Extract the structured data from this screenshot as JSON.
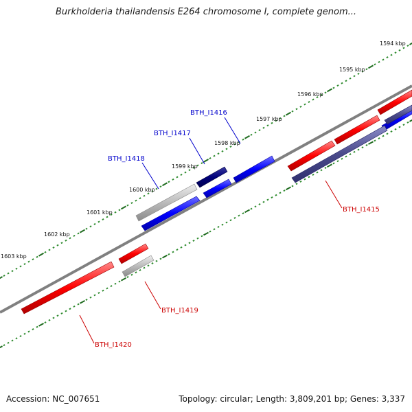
{
  "title": "Burkholderia thailandensis E264 chromosome I, complete genom...",
  "footer": {
    "accession": "Accession: NC_007651",
    "topology": "Topology: circular; Length: 3,809,201 bp; Genes: 3,337"
  },
  "colors": {
    "backbone": "#777777",
    "tick_minor": "#2e8b2e",
    "tick_major": "#1f6b1f",
    "forward_gene": "#0000ff",
    "forward_gene_dark": "#00007a",
    "forward_gene_pale": "#4a4a8a",
    "reverse_gene": "#ff0000",
    "pseudo_gene": "#b8b8b8",
    "label_forward": "#0000cc",
    "label_reverse": "#cc0000"
  },
  "scale_labels": [
    "1594 kbp",
    "1595 kbp",
    "1596 kbp",
    "1597 kbp",
    "1598 kbp",
    "1599 kbp",
    "1600 kbp",
    "1601 kbp",
    "1602 kbp",
    "1603 kbp"
  ],
  "genes": [
    {
      "name": "BTH_I1415",
      "strand": "reverse"
    },
    {
      "name": "BTH_I1416",
      "strand": "forward"
    },
    {
      "name": "BTH_I1417",
      "strand": "forward"
    },
    {
      "name": "BTH_I1418",
      "strand": "forward"
    },
    {
      "name": "BTH_I1419",
      "strand": "reverse"
    },
    {
      "name": "BTH_I1420",
      "strand": "reverse"
    }
  ]
}
